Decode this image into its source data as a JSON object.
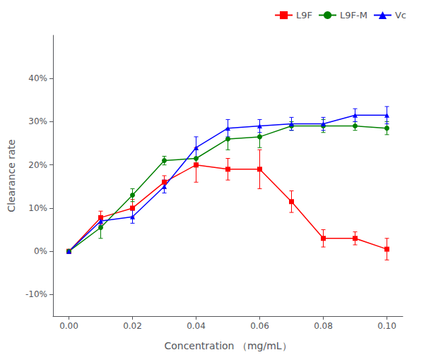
{
  "chart_data": {
    "type": "line",
    "xlabel": "Concentration （mg/mL）",
    "ylabel": "Clearance rate",
    "x": [
      0.0,
      0.01,
      0.02,
      0.03,
      0.04,
      0.05,
      0.06,
      0.07,
      0.08,
      0.09,
      0.1
    ],
    "series": [
      {
        "name": "L9F",
        "color": "#FF0000",
        "marker": "square",
        "values": [
          0.0,
          7.8,
          10.0,
          16.0,
          20.0,
          19.0,
          19.0,
          11.5,
          3.0,
          3.0,
          0.5
        ],
        "errors": [
          0.0,
          1.5,
          2.0,
          1.5,
          4.0,
          2.5,
          4.5,
          2.5,
          2.0,
          1.5,
          2.5
        ]
      },
      {
        "name": "L9F-M",
        "color": "#008000",
        "marker": "circle",
        "values": [
          0.0,
          5.5,
          13.0,
          21.0,
          21.5,
          26.0,
          26.5,
          29.0,
          29.0,
          29.0,
          28.5
        ],
        "errors": [
          0.0,
          2.5,
          1.5,
          1.0,
          2.0,
          2.5,
          2.5,
          1.0,
          1.5,
          1.0,
          1.5
        ]
      },
      {
        "name": "Vc",
        "color": "#0000FF",
        "marker": "triangle",
        "values": [
          0.0,
          7.0,
          8.0,
          15.0,
          24.0,
          28.5,
          29.0,
          29.5,
          29.5,
          31.5,
          31.5
        ],
        "errors": [
          0.0,
          1.0,
          1.5,
          1.5,
          2.5,
          2.0,
          1.5,
          1.5,
          1.5,
          1.5,
          2.0
        ]
      }
    ],
    "xlim": [
      -0.005,
      0.105
    ],
    "xticks": [
      {
        "value": 0.0,
        "label": "0.00"
      },
      {
        "value": 0.02,
        "label": "0.02"
      },
      {
        "value": 0.04,
        "label": "0.04"
      },
      {
        "value": 0.06,
        "label": "0.06"
      },
      {
        "value": 0.08,
        "label": "0.08"
      },
      {
        "value": 0.1,
        "label": "0.10"
      }
    ],
    "ylim": [
      -15,
      50
    ],
    "yticks": [
      {
        "value": -10,
        "label": "-10%"
      },
      {
        "value": 0,
        "label": "0%"
      },
      {
        "value": 10,
        "label": "10%"
      },
      {
        "value": 20,
        "label": "20%"
      },
      {
        "value": 30,
        "label": "30%"
      },
      {
        "value": 40,
        "label": "40%"
      }
    ],
    "grid": false,
    "legend": "upper right"
  }
}
